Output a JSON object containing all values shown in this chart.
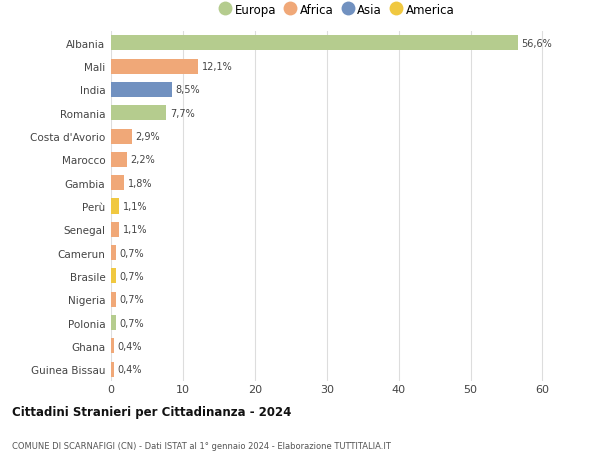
{
  "categories": [
    "Albania",
    "Mali",
    "India",
    "Romania",
    "Costa d'Avorio",
    "Marocco",
    "Gambia",
    "Perù",
    "Senegal",
    "Camerun",
    "Brasile",
    "Nigeria",
    "Polonia",
    "Ghana",
    "Guinea Bissau"
  ],
  "values": [
    56.6,
    12.1,
    8.5,
    7.7,
    2.9,
    2.2,
    1.8,
    1.1,
    1.1,
    0.7,
    0.7,
    0.7,
    0.7,
    0.4,
    0.4
  ],
  "labels": [
    "56,6%",
    "12,1%",
    "8,5%",
    "7,7%",
    "2,9%",
    "2,2%",
    "1,8%",
    "1,1%",
    "1,1%",
    "0,7%",
    "0,7%",
    "0,7%",
    "0,7%",
    "0,4%",
    "0,4%"
  ],
  "colors": [
    "#b5cc8e",
    "#f0a878",
    "#7191c0",
    "#b5cc8e",
    "#f0a878",
    "#f0a878",
    "#f0a878",
    "#f0c840",
    "#f0a878",
    "#f0a878",
    "#f0c840",
    "#f0a878",
    "#b5cc8e",
    "#f0a878",
    "#f0a878"
  ],
  "legend": [
    {
      "label": "Europa",
      "color": "#b5cc8e"
    },
    {
      "label": "Africa",
      "color": "#f0a878"
    },
    {
      "label": "Asia",
      "color": "#7191c0"
    },
    {
      "label": "America",
      "color": "#f0c840"
    }
  ],
  "xlim": [
    0,
    63
  ],
  "xticks": [
    0,
    10,
    20,
    30,
    40,
    50,
    60
  ],
  "title": "Cittadini Stranieri per Cittadinanza - 2024",
  "subtitle": "COMUNE DI SCARNAFIGI (CN) - Dati ISTAT al 1° gennaio 2024 - Elaborazione TUTTITALIA.IT",
  "background_color": "#ffffff",
  "grid_color": "#dddddd",
  "bar_height": 0.65
}
